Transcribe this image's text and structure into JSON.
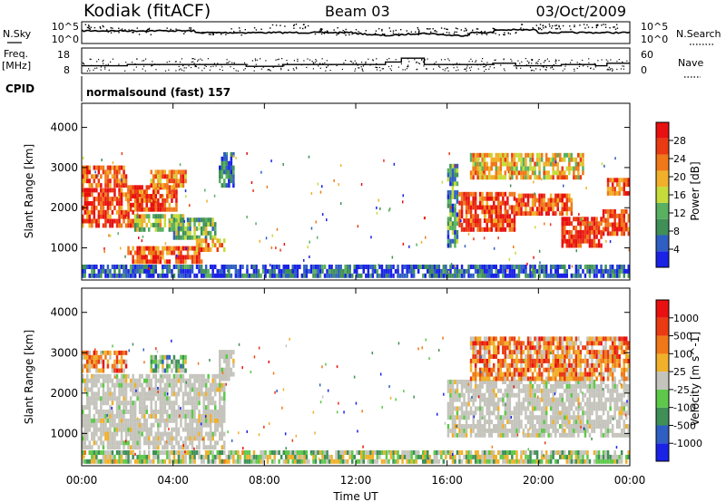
{
  "header": {
    "station": "Kodiak (fitACF)",
    "beam": "Beam 03",
    "date": "03/Oct/2009"
  },
  "noise_panel": {
    "left_label": "N.Sky",
    "right_label": "N.Search",
    "left_ticks": [
      "10^5",
      "10^0"
    ],
    "right_ticks": [
      "10^5",
      "10^0"
    ]
  },
  "freq_panel": {
    "left_label_1": "Freq.",
    "left_label_2": "[MHz]",
    "right_label": "Nave",
    "left_ticks": [
      "18",
      "8"
    ],
    "right_ticks": [
      "60",
      "0"
    ]
  },
  "cpid": {
    "label": "CPID",
    "program": "normalsound (fast) 157"
  },
  "colors": {
    "power": [
      "#1a22e6",
      "#2f5fc2",
      "#3f8f57",
      "#58b060",
      "#c6dc3a",
      "#f0b02a",
      "#f07818",
      "#ea3a12",
      "#e81010"
    ],
    "velocity": [
      "#1a22e6",
      "#2f5fc2",
      "#3f8f57",
      "#5ec84a",
      "#c4c4bc",
      "#f0b02a",
      "#f07818",
      "#ea3a12",
      "#e81010"
    ],
    "ground_scatter": "#c4c4bc"
  },
  "chart_data": [
    {
      "type": "heatmap",
      "name": "power",
      "ylabel": "Slant Range [km]",
      "yticks": [
        1000,
        2000,
        3000,
        4000
      ],
      "ylim": [
        200,
        4600
      ],
      "xlim": [
        0,
        24
      ],
      "colorbar_label": "Power [dB]",
      "colorbar_ticks": [
        "28",
        "24",
        "20",
        "16",
        "12",
        "8",
        "4"
      ],
      "regions": [
        {
          "t0": 0,
          "t1": 2.6,
          "r0": 1500,
          "r1": 2400,
          "level": 0.85
        },
        {
          "t0": 0,
          "t1": 2.0,
          "r0": 2500,
          "r1": 3000,
          "level": 0.8
        },
        {
          "t0": 2.0,
          "t1": 4.2,
          "r0": 1900,
          "r1": 2500,
          "level": 0.8
        },
        {
          "t0": 3.0,
          "t1": 4.5,
          "r0": 2500,
          "r1": 2900,
          "level": 0.75
        },
        {
          "t0": 2.3,
          "t1": 4.4,
          "r0": 1400,
          "r1": 1800,
          "level": 0.45
        },
        {
          "t0": 4.0,
          "t1": 5.8,
          "r0": 1200,
          "r1": 1700,
          "level": 0.4
        },
        {
          "t0": 2.0,
          "t1": 5.2,
          "r0": 600,
          "r1": 1000,
          "level": 0.8
        },
        {
          "t0": 5.0,
          "t1": 6.2,
          "r0": 900,
          "r1": 1200,
          "level": 0.7
        },
        {
          "t0": 6.0,
          "t1": 6.6,
          "r0": 2500,
          "r1": 3300,
          "level": 0.2
        },
        {
          "t0": 0,
          "t1": 24,
          "r0": 250,
          "r1": 500,
          "level": 0.15
        },
        {
          "t0": 16.0,
          "t1": 16.5,
          "r0": 1000,
          "r1": 3000,
          "level": 0.3
        },
        {
          "t0": 16.5,
          "t1": 19.0,
          "r0": 1400,
          "r1": 2300,
          "level": 0.85
        },
        {
          "t0": 17.0,
          "t1": 22.0,
          "r0": 2700,
          "r1": 3300,
          "level": 0.6
        },
        {
          "t0": 19.0,
          "t1": 21.5,
          "r0": 1800,
          "r1": 2300,
          "level": 0.8
        },
        {
          "t0": 21.0,
          "t1": 22.8,
          "r0": 1000,
          "r1": 1700,
          "level": 0.9
        },
        {
          "t0": 22.8,
          "t1": 24.0,
          "r0": 1300,
          "r1": 1900,
          "level": 0.85
        },
        {
          "t0": 23.0,
          "t1": 24.0,
          "r0": 2300,
          "r1": 2700,
          "level": 0.8
        }
      ]
    },
    {
      "type": "heatmap",
      "name": "velocity",
      "ylabel": "Slant Range [km]",
      "yticks": [
        1000,
        2000,
        3000,
        4000
      ],
      "ylim": [
        200,
        4600
      ],
      "xlim": [
        0,
        24
      ],
      "xticks": [
        "00:00",
        "04:00",
        "08:00",
        "12:00",
        "16:00",
        "20:00",
        "00:00"
      ],
      "xlabel": "Time UT",
      "colorbar_label": "Velocity [m s^-1]",
      "colorbar_ticks": [
        "1000",
        "500",
        "100",
        "25",
        "-25",
        "-100",
        "-500",
        "-1000"
      ],
      "regions": [
        {
          "t0": 0,
          "t1": 6.2,
          "r0": 600,
          "r1": 2400,
          "level": 0.5
        },
        {
          "t0": 0,
          "t1": 2.0,
          "r0": 2500,
          "r1": 3000,
          "level": 0.7
        },
        {
          "t0": 3.0,
          "t1": 4.5,
          "r0": 2500,
          "r1": 2900,
          "level": 0.4
        },
        {
          "t0": 6.0,
          "t1": 6.6,
          "r0": 2300,
          "r1": 3000,
          "level": 0.5
        },
        {
          "t0": 0,
          "t1": 24,
          "r0": 250,
          "r1": 500,
          "level": 0.45
        },
        {
          "t0": 16.0,
          "t1": 24.0,
          "r0": 900,
          "r1": 2300,
          "level": 0.5
        },
        {
          "t0": 17.0,
          "t1": 24.0,
          "r0": 2300,
          "r1": 3300,
          "level": 0.7
        }
      ]
    }
  ]
}
